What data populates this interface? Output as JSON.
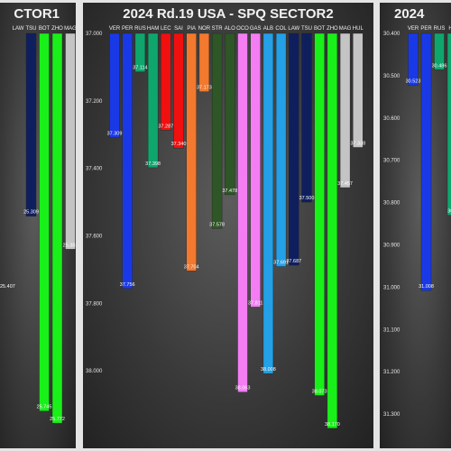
{
  "chart_data": [
    {
      "type": "bar",
      "title": "CTOR1",
      "categories": [
        "LAW",
        "TSU",
        "BOT",
        "ZHO",
        "MAG",
        "HUL"
      ],
      "values": [
        null,
        25.309,
        25.745,
        25.772,
        25.383,
        25.381
      ],
      "colors": [
        "#0f1f5e",
        "#0f1f5e",
        "#19f019",
        "#19f019",
        "#c4c4c4",
        "#c4c4c4"
      ],
      "extra_bars": [
        {
          "color": "#0f1f5e",
          "label": "25.407"
        }
      ],
      "ylim": [
        24.9,
        25.8
      ],
      "grid": false
    },
    {
      "type": "bar",
      "title": "2024 Rd.19 USA - SPQ SECTOR2",
      "categories": [
        "VER",
        "PER",
        "RUS",
        "HAM",
        "LEC",
        "SAI",
        "PIA",
        "NOR",
        "STR",
        "ALO",
        "OCO",
        "GAS",
        "ALB",
        "COL",
        "LAW",
        "TSU",
        "BOT",
        "ZHO",
        "MAG",
        "HUL"
      ],
      "values": [
        37.309,
        37.756,
        37.114,
        37.398,
        37.287,
        37.34,
        37.704,
        37.173,
        37.578,
        37.478,
        38.063,
        37.811,
        38.008,
        37.691,
        37.687,
        37.5,
        38.073,
        38.17,
        37.457,
        37.338
      ],
      "colors": [
        "#1a39e6",
        "#1a39e6",
        "#0fa66e",
        "#0fa66e",
        "#f01010",
        "#f01010",
        "#f2792d",
        "#f2792d",
        "#2e5626",
        "#2e5626",
        "#f47df4",
        "#f47df4",
        "#23a0e6",
        "#23a0e6",
        "#0f1f5e",
        "#0f1f5e",
        "#19f019",
        "#19f019",
        "#c4c4c4",
        "#c4c4c4"
      ],
      "yticks": [
        "37.000",
        "37.200",
        "37.400",
        "37.600",
        "37.800",
        "38.000"
      ],
      "ylim": [
        37.0,
        38.2
      ],
      "grid": false
    },
    {
      "type": "bar",
      "title": "2024",
      "categories": [
        "VER",
        "PER",
        "RUS",
        "HA"
      ],
      "values": [
        30.523,
        31.008,
        30.486,
        30.83
      ],
      "colors": [
        "#1a39e6",
        "#1a39e6",
        "#0fa66e",
        "#0fa66e"
      ],
      "labels": [
        "30.523",
        "31.008",
        "30.486",
        "30.8"
      ],
      "yticks": [
        "30.400",
        "30.500",
        "30.600",
        "30.700",
        "30.800",
        "30.900",
        "31.000",
        "31.100",
        "31.200",
        "31.300"
      ],
      "ylim": [
        30.4,
        31.4
      ],
      "grid": false
    }
  ]
}
